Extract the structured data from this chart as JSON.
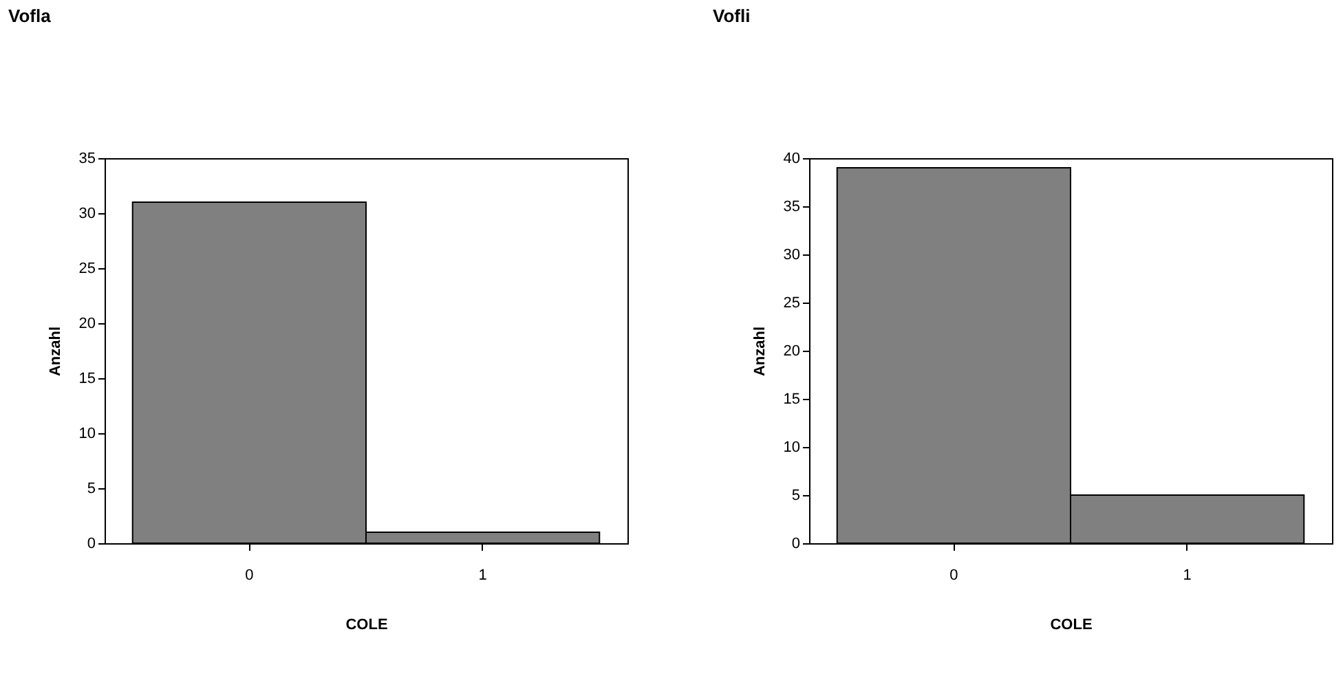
{
  "chart_data": [
    {
      "type": "bar",
      "title": "Vofla",
      "xlabel": "COLE",
      "ylabel": "Anzahl",
      "categories": [
        "0",
        "1"
      ],
      "values": [
        31,
        1
      ],
      "color": "#808080",
      "ylim": [
        0,
        35
      ],
      "yticks": [
        0,
        5,
        10,
        15,
        20,
        25,
        30,
        35
      ],
      "grid": false
    },
    {
      "type": "bar",
      "title": "Vofli",
      "xlabel": "COLE",
      "ylabel": "Anzahl",
      "categories": [
        "0",
        "1"
      ],
      "values": [
        39,
        5
      ],
      "color": "#808080",
      "ylim": [
        0,
        40
      ],
      "yticks": [
        0,
        5,
        10,
        15,
        20,
        25,
        30,
        35,
        40
      ],
      "grid": false
    }
  ]
}
